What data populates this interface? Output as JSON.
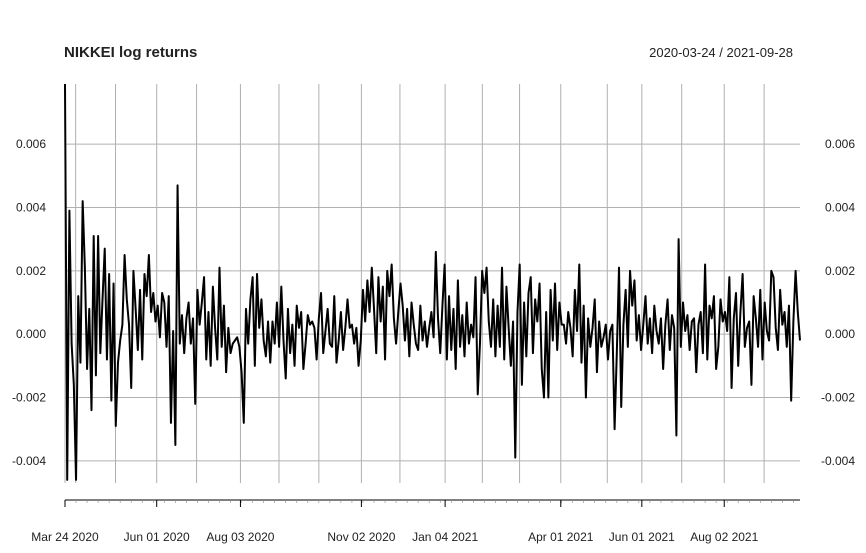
{
  "chart_data": {
    "type": "line",
    "title": "NIKKEI log returns",
    "date_range_label": "2020-03-24 / 2021-09-28",
    "x_range": [
      "2020-03-24",
      "2021-09-28"
    ],
    "ylim": [
      -0.0047,
      0.0079
    ],
    "yticks": [
      -0.004,
      -0.002,
      0.0,
      0.002,
      0.004,
      0.006
    ],
    "ytick_labels": [
      "-0.004",
      "-0.002",
      "0.000",
      "0.002",
      "0.004",
      "0.006"
    ],
    "xtick_labels": [
      {
        "date": "2020-03-24",
        "label": "Mar 24 2020"
      },
      {
        "date": "2020-06-01",
        "label": "Jun 01 2020"
      },
      {
        "date": "2020-08-03",
        "label": "Aug 03 2020"
      },
      {
        "date": "2020-11-02",
        "label": "Nov 02 2020"
      },
      {
        "date": "2021-01-04",
        "label": "Jan 04 2021"
      },
      {
        "date": "2021-04-01",
        "label": "Apr 01 2021"
      },
      {
        "date": "2021-06-01",
        "label": "Jun 01 2021"
      },
      {
        "date": "2021-08-02",
        "label": "Aug 02 2021"
      }
    ],
    "grid_x_dates": [
      "2020-03-24",
      "2020-04-01",
      "2020-05-01",
      "2020-06-01",
      "2020-07-01",
      "2020-08-03",
      "2020-09-01",
      "2020-10-01",
      "2020-11-02",
      "2020-12-01",
      "2021-01-04",
      "2021-02-01",
      "2021-03-01",
      "2021-04-01",
      "2021-05-06",
      "2021-06-01",
      "2021-07-01",
      "2021-08-02",
      "2021-09-01"
    ],
    "grid": true,
    "series": [
      {
        "values": [
          0.0079,
          -0.0046,
          0.0039,
          -0.0003,
          -0.0016,
          -0.0046,
          0.0012,
          -0.0009,
          0.0042,
          0.0021,
          -0.0011,
          0.0008,
          -0.0024,
          0.0031,
          -0.0013,
          0.0031,
          -0.0006,
          0.0011,
          0.0027,
          -0.0008,
          0.0019,
          -0.0021,
          0.0016,
          -0.0029,
          -0.0009,
          -0.0002,
          0.0003,
          0.0025,
          0.0011,
          0.0003,
          -0.0017,
          0.002,
          0.0008,
          -0.0005,
          0.0014,
          -0.0008,
          0.0019,
          0.0012,
          0.0025,
          0.0007,
          0.0013,
          0.0004,
          0.0009,
          -0.0001,
          0.0013,
          0.001,
          -0.0004,
          0.0012,
          -0.0028,
          0.0001,
          -0.0035,
          0.0047,
          -0.0003,
          0.0006,
          -0.0006,
          0.0005,
          0.001,
          -0.0003,
          0.0005,
          -0.0022,
          0.0014,
          0.0003,
          0.001,
          0.0018,
          -0.0008,
          0.0007,
          -0.001,
          0.0015,
          0.0002,
          -0.0008,
          0.0021,
          -0.0004,
          0.0009,
          -0.0012,
          0.0002,
          -0.0006,
          -0.0003,
          -0.0002,
          -0.0001,
          -0.0004,
          -0.0012,
          -0.0028,
          0.0008,
          -0.0003,
          0.0011,
          0.0018,
          -0.001,
          0.0019,
          0.0002,
          0.0011,
          -0.0002,
          -0.0007,
          0.0004,
          -0.0009,
          0.0004,
          -0.0003,
          0.001,
          -0.0004,
          0.0015,
          -0.0002,
          -0.0014,
          0.0008,
          -0.0006,
          0.0003,
          -0.001,
          0.0009,
          0.0002,
          0.0007,
          -0.0011,
          -0.0003,
          0.0006,
          0.0003,
          0.0004,
          0.0002,
          -0.0008,
          0.0005,
          0.0013,
          -0.0006,
          0.0001,
          0.0008,
          -0.0003,
          -0.0004,
          0.0012,
          -0.0009,
          -0.0002,
          0.0007,
          -0.0005,
          0.0002,
          0.0011,
          0.0002,
          0.0003,
          -0.0003,
          0.0002,
          -0.001,
          -0.0002,
          0.0014,
          0.0004,
          0.0017,
          0.0007,
          0.0021,
          0.0008,
          -0.0006,
          0.0018,
          0.0004,
          0.0015,
          -0.0008,
          0.002,
          0.0012,
          0.0022,
          0.0005,
          -0.0003,
          0.0007,
          0.0016,
          0.0009,
          -0.0002,
          0.0008,
          -0.0007,
          0.001,
          0.0003,
          -0.0003,
          -0.0005,
          0.0009,
          -0.0002,
          0.0004,
          -0.0004,
          0.0002,
          0.0007,
          -0.0001,
          0.0026,
          0.0005,
          -0.0006,
          0.0009,
          0.0022,
          -0.0008,
          0.0012,
          -0.0005,
          0.0008,
          -0.0011,
          0.0017,
          -0.0004,
          0.0006,
          -0.0007,
          0.001,
          -0.0003,
          0.0003,
          -0.0001,
          0.0018,
          -0.0019,
          -0.0003,
          0.002,
          0.0013,
          0.0021,
          0.0004,
          -0.0004,
          0.0011,
          -0.0007,
          0.0009,
          -0.0004,
          0.0021,
          -0.0008,
          0.0015,
          0.0002,
          -0.001,
          0.0004,
          -0.0039,
          0.0007,
          0.0022,
          -0.0016,
          0.001,
          -0.0007,
          0.0013,
          0.0018,
          -0.0006,
          0.0011,
          0.0004,
          0.0016,
          -0.0011,
          -0.002,
          0.0007,
          -0.002,
          0.0014,
          -0.0002,
          0.0016,
          -0.0005,
          0.001,
          0.0003,
          0.0003,
          -0.0003,
          0.0007,
          0.0002,
          -0.0007,
          0.0014,
          0.0001,
          0.0022,
          -0.0009,
          0.0009,
          -0.002,
          0.0005,
          -0.0004,
          0.0002,
          0.0011,
          -0.0012,
          0.0004,
          -0.0004,
          -0.0001,
          0.0003,
          -0.0008,
          0.0001,
          0.0003,
          -0.003,
          -0.0006,
          0.0021,
          -0.0023,
          0.0003,
          0.0014,
          -0.0004,
          0.002,
          0.0009,
          0.0017,
          -0.0002,
          0.0006,
          -0.0005,
          0.0003,
          0.0012,
          -0.0003,
          0.0005,
          -0.0006,
          0.0009,
          0.0001,
          -0.0003,
          0.0005,
          -0.0011,
          0.0003,
          0.0011,
          -0.0005,
          0.0006,
          0.0002,
          -0.0032,
          0.003,
          -0.0004,
          0.001,
          0.0001,
          0.0006,
          -0.0005,
          0.0004,
          0.0005,
          -0.0012,
          0.0003,
          0.0007,
          -0.0006,
          0.0022,
          -0.0008,
          0.0009,
          0.0005,
          0.0012,
          -0.0011,
          -0.0004,
          0.0011,
          0.0004,
          0.0007,
          0.0001,
          0.0018,
          -0.0017,
          0.0005,
          0.0013,
          -0.001,
          0.0007,
          0.0019,
          -0.0004,
          0.0002,
          0.0004,
          -0.0016,
          0.0012,
          0.0005,
          -0.0004,
          0.0014,
          -0.0008,
          0.001,
          0.0001,
          -0.0002,
          0.002,
          0.0018,
          0.0002,
          -0.0005,
          0.0014,
          0.0003,
          0.0007,
          -0.0004,
          0.0009,
          -0.0021,
          0.0004,
          0.002,
          0.0007,
          -0.0002
        ]
      }
    ]
  }
}
